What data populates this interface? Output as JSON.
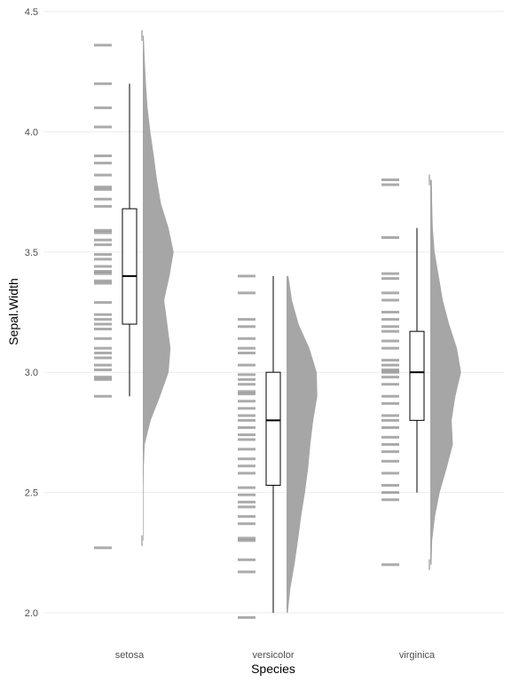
{
  "chart_data": {
    "type": "raincloud",
    "title": "",
    "xlabel": "Species",
    "ylabel": "Sepal.Width",
    "ylim": [
      1.95,
      4.5
    ],
    "yticks": [
      2.0,
      2.5,
      3.0,
      3.5,
      4.0,
      4.5
    ],
    "ytick_labels": [
      "2.0",
      "2.5",
      "3.0",
      "3.5",
      "4.0",
      "4.5"
    ],
    "grid": true,
    "legend": "none",
    "colors": {
      "density": "#a6a6a6",
      "rug": "#7f7f7f",
      "box_stroke": "#000000",
      "grid": "#ebebeb"
    },
    "categories": [
      "setosa",
      "versicolor",
      "virginica"
    ],
    "groups": [
      {
        "name": "setosa",
        "box": {
          "min": 2.9,
          "q1": 3.2,
          "median": 3.4,
          "q3": 3.68,
          "max": 4.2
        },
        "outliers": [
          2.3,
          4.4
        ],
        "density": {
          "y": [
            2.3,
            2.4,
            2.5,
            2.6,
            2.7,
            2.8,
            2.9,
            3.0,
            3.1,
            3.2,
            3.3,
            3.4,
            3.5,
            3.6,
            3.7,
            3.8,
            3.9,
            4.0,
            4.1,
            4.2,
            4.3,
            4.4
          ],
          "d": [
            0.02,
            0.02,
            0.02,
            0.03,
            0.06,
            0.25,
            0.55,
            0.82,
            0.88,
            0.78,
            0.68,
            0.85,
            0.98,
            0.82,
            0.58,
            0.45,
            0.35,
            0.24,
            0.15,
            0.1,
            0.06,
            0.03
          ]
        },
        "points": [
          4.36,
          4.2,
          4.1,
          4.02,
          3.9,
          3.87,
          3.82,
          3.77,
          3.76,
          3.72,
          3.69,
          3.59,
          3.58,
          3.55,
          3.53,
          3.49,
          3.47,
          3.44,
          3.42,
          3.41,
          3.38,
          3.37,
          3.29,
          3.24,
          3.22,
          3.2,
          3.18,
          3.14,
          3.1,
          3.08,
          3.06,
          3.03,
          3.01,
          2.98,
          2.97,
          2.9,
          2.27
        ]
      },
      {
        "name": "versicolor",
        "box": {
          "min": 2.0,
          "q1": 2.53,
          "median": 2.8,
          "q3": 3.0,
          "max": 3.4
        },
        "outliers": [],
        "density": {
          "y": [
            2.0,
            2.1,
            2.2,
            2.3,
            2.4,
            2.5,
            2.6,
            2.7,
            2.8,
            2.9,
            3.0,
            3.1,
            3.2,
            3.3,
            3.4
          ],
          "d": [
            0.04,
            0.12,
            0.25,
            0.36,
            0.46,
            0.58,
            0.68,
            0.75,
            0.84,
            0.97,
            0.95,
            0.72,
            0.38,
            0.17,
            0.06
          ]
        },
        "points": [
          3.4,
          3.33,
          3.22,
          3.19,
          3.14,
          3.1,
          3.08,
          3.03,
          2.99,
          2.97,
          2.95,
          2.92,
          2.91,
          2.88,
          2.85,
          2.82,
          2.8,
          2.77,
          2.74,
          2.72,
          2.68,
          2.64,
          2.61,
          2.58,
          2.52,
          2.49,
          2.46,
          2.44,
          2.4,
          2.37,
          2.31,
          2.3,
          2.22,
          2.17,
          1.98
        ]
      },
      {
        "name": "virginica",
        "box": {
          "min": 2.5,
          "q1": 2.8,
          "median": 3.0,
          "q3": 3.17,
          "max": 3.6
        },
        "outliers": [
          2.2,
          3.8
        ],
        "density": {
          "y": [
            2.2,
            2.3,
            2.4,
            2.5,
            2.6,
            2.7,
            2.8,
            2.9,
            3.0,
            3.1,
            3.2,
            3.3,
            3.4,
            3.5,
            3.6,
            3.7,
            3.8
          ],
          "d": [
            0.04,
            0.06,
            0.15,
            0.3,
            0.52,
            0.72,
            0.68,
            0.8,
            0.98,
            0.85,
            0.6,
            0.4,
            0.27,
            0.14,
            0.08,
            0.06,
            0.05
          ]
        },
        "points": [
          3.8,
          3.78,
          3.56,
          3.41,
          3.39,
          3.33,
          3.3,
          3.25,
          3.22,
          3.19,
          3.17,
          3.13,
          3.1,
          3.05,
          3.03,
          3.01,
          3.0,
          2.98,
          2.95,
          2.9,
          2.87,
          2.82,
          2.8,
          2.77,
          2.73,
          2.7,
          2.67,
          2.63,
          2.58,
          2.53,
          2.5,
          2.47,
          2.2
        ]
      }
    ]
  }
}
